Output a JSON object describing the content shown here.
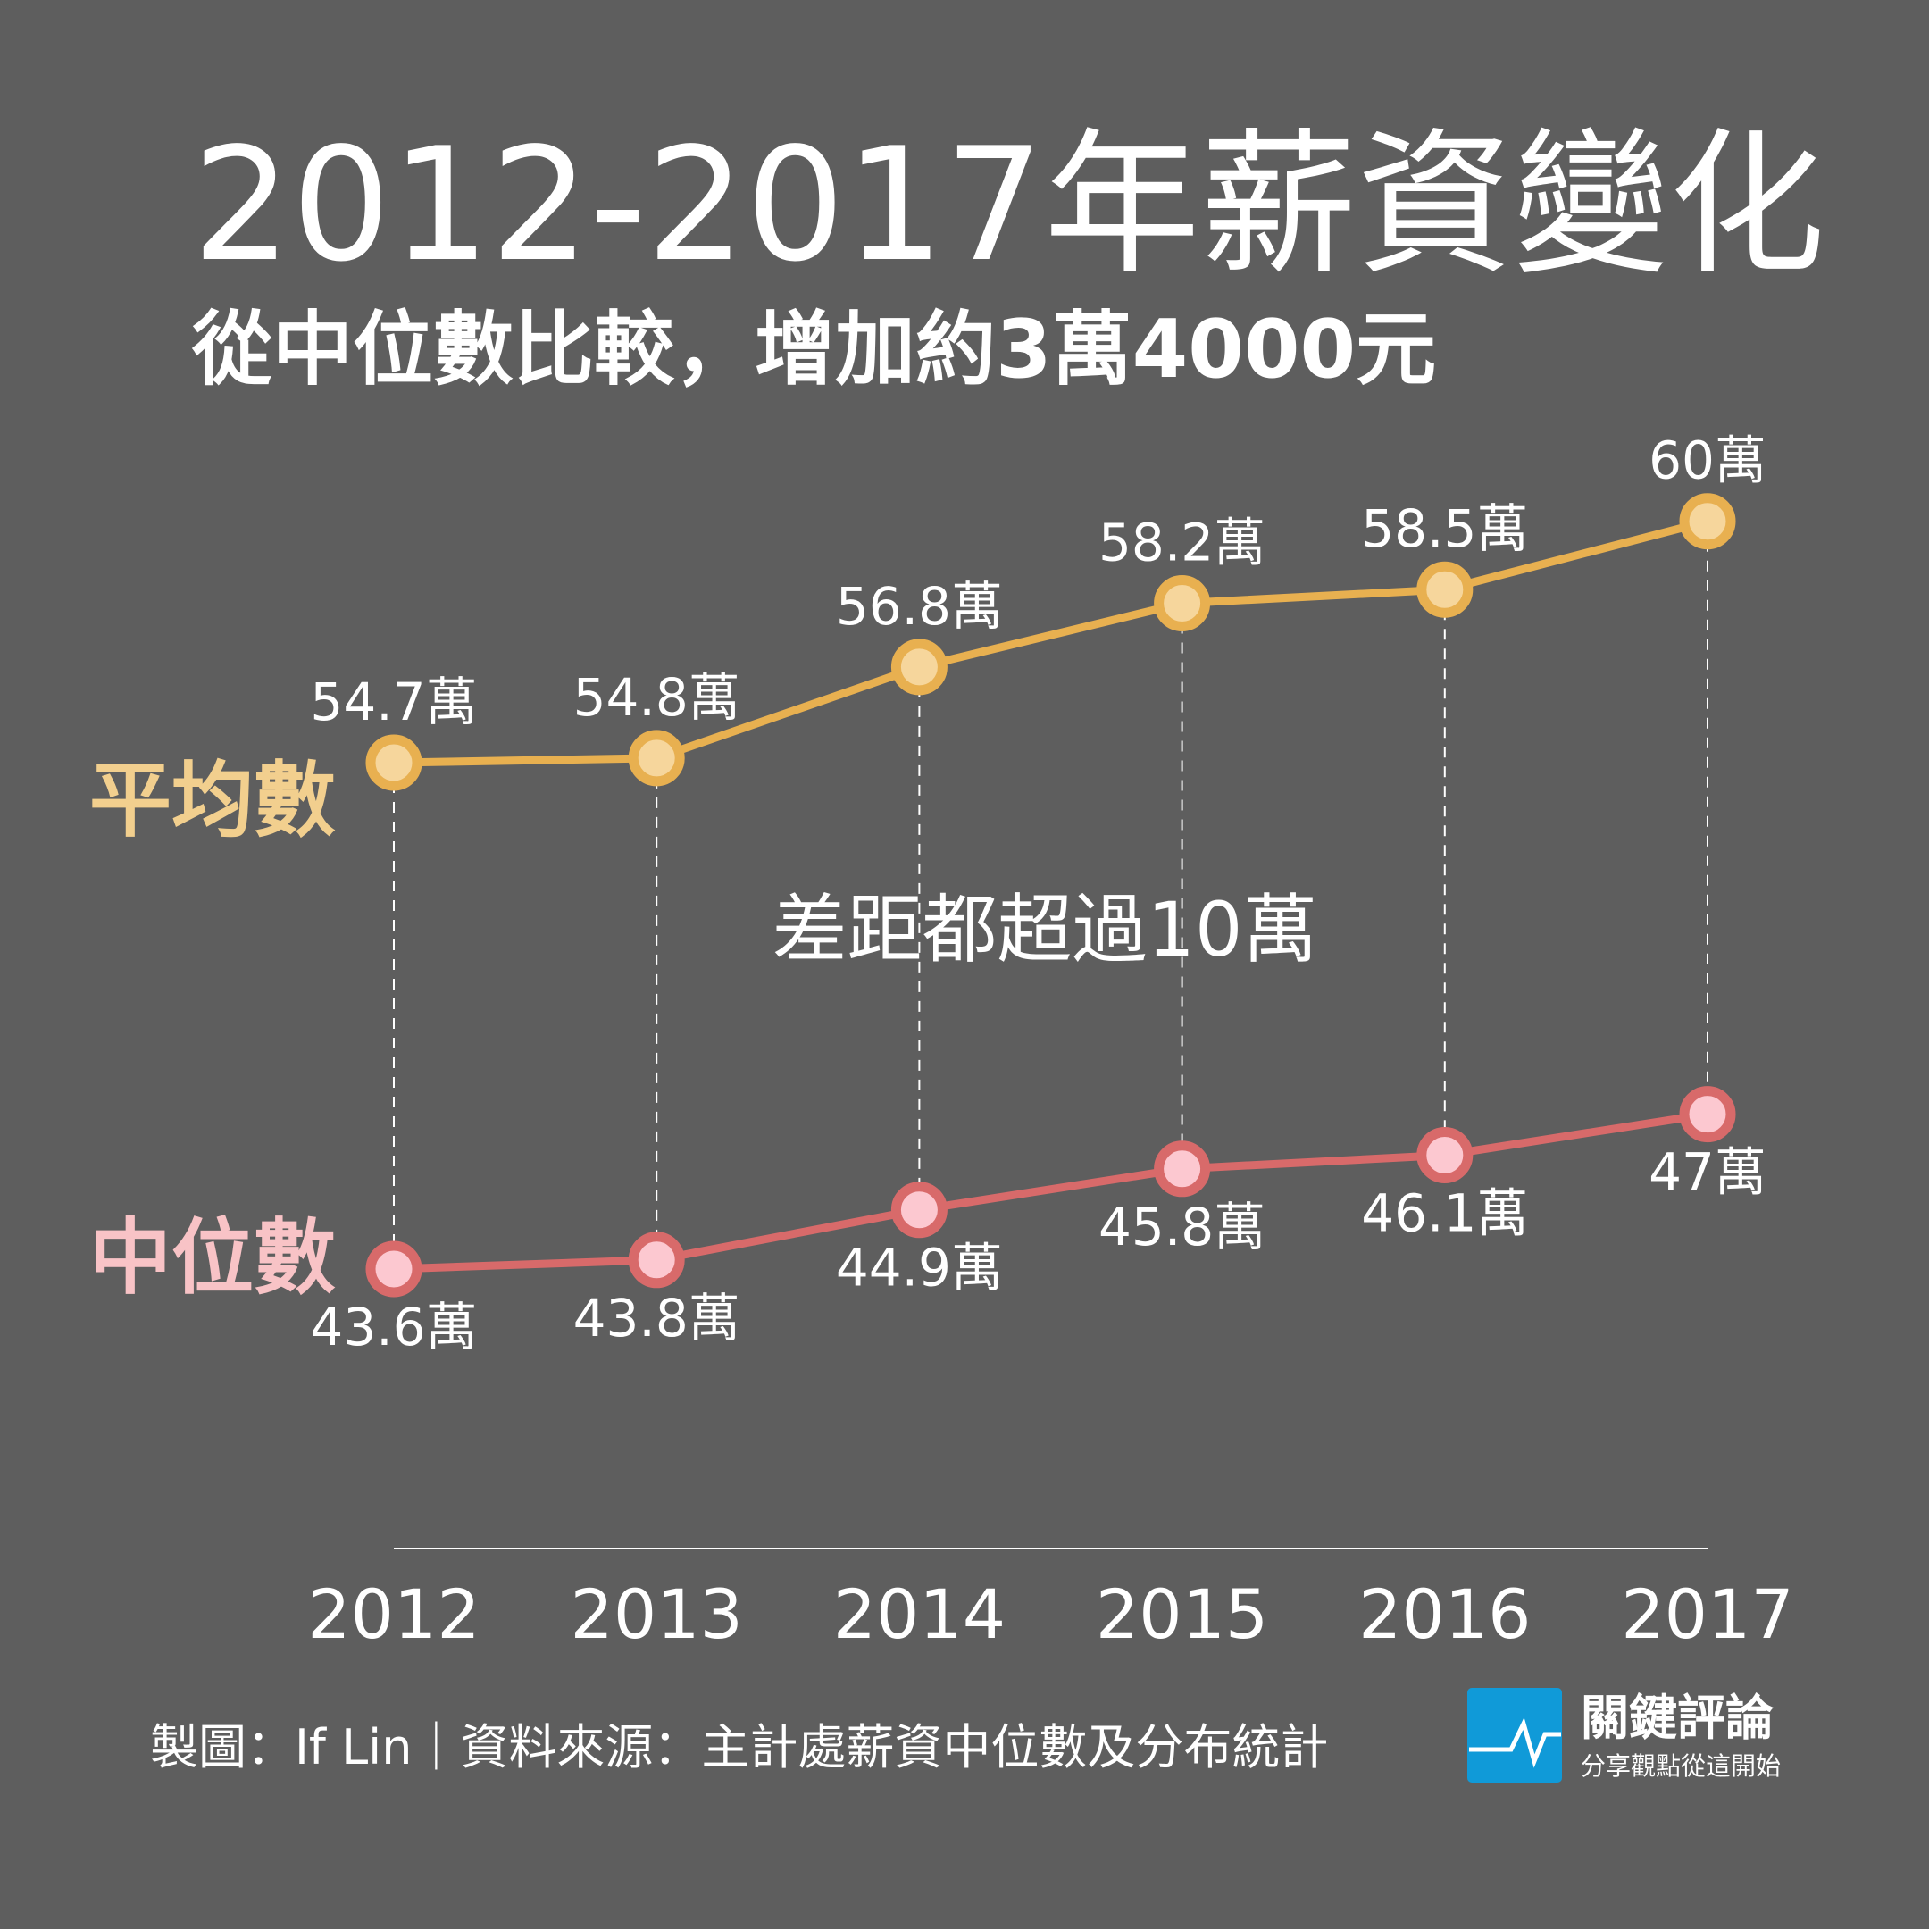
{
  "title": "2012-2017年薪資變化",
  "subtitle": "從中位數比較，增加約3萬4000元",
  "annotation": "差距都超過10萬",
  "footer": "製圖：If Lin｜資料來源：主計處薪資中位數及分布統計",
  "logo": {
    "name": "關鍵評論",
    "tagline": "分享觀點從這開始",
    "color": "#109ad8"
  },
  "colors": {
    "background": "#5e5e5e",
    "average": "#e8b050",
    "average_fill": "#f6d69c",
    "median": "#d86a6a",
    "median_fill": "#fcc8d0"
  },
  "chart_data": {
    "type": "line",
    "categories": [
      "2012",
      "2013",
      "2014",
      "2015",
      "2016",
      "2017"
    ],
    "unit": "萬",
    "series": [
      {
        "name": "平均數",
        "values": [
          54.7,
          54.8,
          56.8,
          58.2,
          58.5,
          60
        ],
        "labels": [
          "54.7萬",
          "54.8萬",
          "56.8萬",
          "58.2萬",
          "58.5萬",
          "60萬"
        ]
      },
      {
        "name": "中位數",
        "values": [
          43.6,
          43.8,
          44.9,
          45.8,
          46.1,
          47
        ],
        "labels": [
          "43.6萬",
          "43.8萬",
          "44.9萬",
          "45.8萬",
          "46.1萬",
          "47萬"
        ]
      }
    ],
    "grid": false,
    "legend": "left, inline labels"
  }
}
